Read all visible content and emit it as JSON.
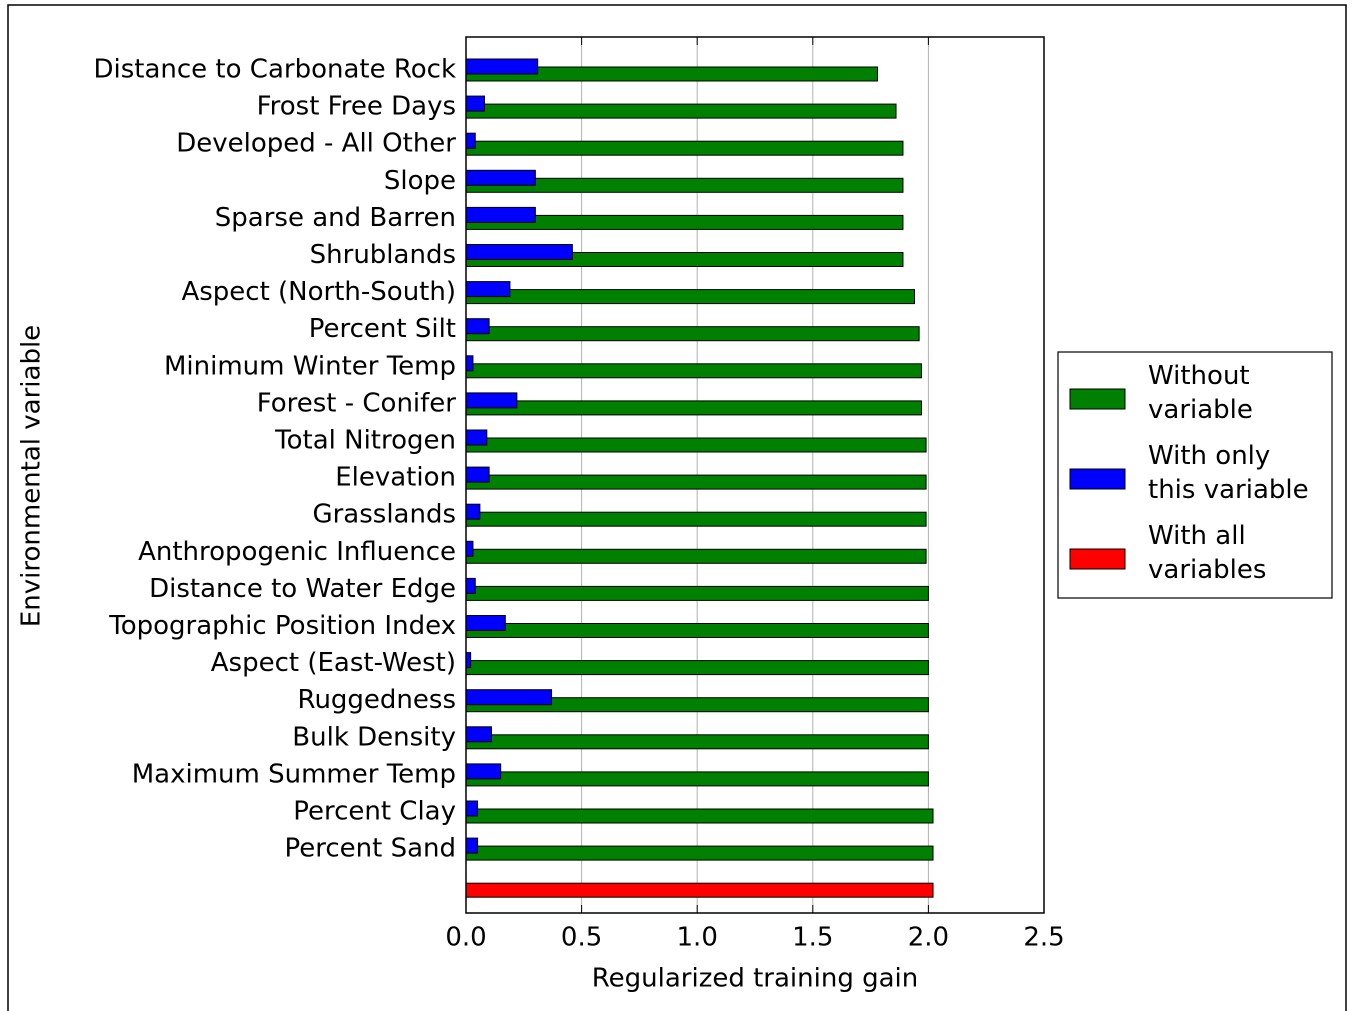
{
  "chart_data": {
    "type": "barh",
    "xlabel": "Regularized training gain",
    "ylabel": "Environmental variable",
    "categories": [
      "Distance to Carbonate Rock",
      "Frost Free Days",
      "Developed - All Other",
      "Slope",
      "Sparse and Barren",
      "Shrublands",
      "Aspect (North-South)",
      "Percent Silt",
      "Minimum Winter Temp",
      "Forest - Conifer",
      "Total Nitrogen",
      "Elevation",
      "Grasslands",
      "Anthropogenic Influence",
      "Distance to Water Edge",
      "Topographic Position Index",
      "Aspect (East-West)",
      "Ruggedness",
      "Bulk Density",
      "Maximum Summer Temp",
      "Percent Clay",
      "Percent Sand",
      null
    ],
    "series": [
      {
        "name": "Without variable",
        "color": "#008000",
        "values": [
          1.78,
          1.86,
          1.89,
          1.89,
          1.89,
          1.89,
          1.94,
          1.96,
          1.97,
          1.97,
          1.99,
          1.99,
          1.99,
          1.99,
          2.0,
          2.0,
          2.0,
          2.0,
          2.0,
          2.0,
          2.02,
          2.02,
          null
        ]
      },
      {
        "name": "With only this variable",
        "color": "#0000ff",
        "values": [
          0.31,
          0.08,
          0.04,
          0.3,
          0.3,
          0.46,
          0.19,
          0.1,
          0.03,
          0.22,
          0.09,
          0.1,
          0.06,
          0.03,
          0.04,
          0.17,
          0.02,
          0.37,
          0.11,
          0.15,
          0.05,
          0.05,
          null
        ]
      },
      {
        "name": "With all variables",
        "color": "#ff0000",
        "values": [
          null,
          null,
          null,
          null,
          null,
          null,
          null,
          null,
          null,
          null,
          null,
          null,
          null,
          null,
          null,
          null,
          null,
          null,
          null,
          null,
          null,
          null,
          2.02
        ]
      }
    ],
    "xlim": [
      0,
      2.5
    ],
    "xticks": [
      {
        "value": 0,
        "label": "0.0"
      },
      0.5,
      {
        "value": 1,
        "label": "1.0"
      },
      1.5,
      {
        "value": 2,
        "label": "2.0"
      },
      2.5
    ],
    "grid": true
  }
}
